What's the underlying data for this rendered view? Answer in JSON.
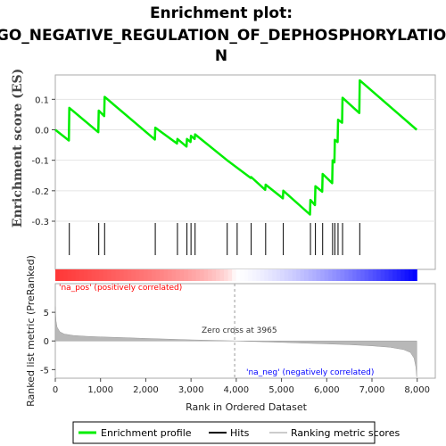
{
  "chart_data": {
    "type": "line",
    "title_line1": "Enrichment plot:",
    "title_line2": "GO_NEGATIVE_REGULATION_OF_DEPHOSPHORYLATIO",
    "title_line3": "N",
    "es_panel": {
      "ylabel": "Enrichment score (ES)",
      "ylim": [
        -0.3,
        0.18
      ],
      "yticks": [
        0.1,
        0.0,
        -0.1,
        -0.2,
        -0.3
      ],
      "ytick_labels": [
        "0.1",
        "0.0",
        "-0.1",
        "-0.2",
        "-0.3"
      ],
      "line_color": "#00ee00",
      "points": [
        {
          "x": 0,
          "y": 0.0
        },
        {
          "x": 300,
          "y": -0.035
        },
        {
          "x": 310,
          "y": 0.072
        },
        {
          "x": 950,
          "y": -0.008
        },
        {
          "x": 960,
          "y": 0.063
        },
        {
          "x": 1080,
          "y": 0.045
        },
        {
          "x": 1090,
          "y": 0.108
        },
        {
          "x": 2200,
          "y": -0.032
        },
        {
          "x": 2210,
          "y": 0.007
        },
        {
          "x": 2690,
          "y": -0.045
        },
        {
          "x": 2700,
          "y": -0.03
        },
        {
          "x": 2900,
          "y": -0.055
        },
        {
          "x": 2910,
          "y": -0.03
        },
        {
          "x": 2990,
          "y": -0.04
        },
        {
          "x": 3000,
          "y": -0.02
        },
        {
          "x": 3080,
          "y": -0.03
        },
        {
          "x": 3090,
          "y": -0.015
        },
        {
          "x": 3800,
          "y": -0.1
        },
        {
          "x": 4320,
          "y": -0.158
        },
        {
          "x": 4330,
          "y": -0.155
        },
        {
          "x": 4640,
          "y": -0.197
        },
        {
          "x": 4650,
          "y": -0.18
        },
        {
          "x": 5030,
          "y": -0.225
        },
        {
          "x": 5040,
          "y": -0.2
        },
        {
          "x": 5630,
          "y": -0.278
        },
        {
          "x": 5640,
          "y": -0.23
        },
        {
          "x": 5740,
          "y": -0.247
        },
        {
          "x": 5750,
          "y": -0.185
        },
        {
          "x": 5900,
          "y": -0.203
        },
        {
          "x": 5910,
          "y": -0.145
        },
        {
          "x": 6120,
          "y": -0.175
        },
        {
          "x": 6130,
          "y": -0.1
        },
        {
          "x": 6170,
          "y": -0.107
        },
        {
          "x": 6180,
          "y": -0.033
        },
        {
          "x": 6240,
          "y": -0.04
        },
        {
          "x": 6250,
          "y": 0.033
        },
        {
          "x": 6340,
          "y": 0.023
        },
        {
          "x": 6350,
          "y": 0.105
        },
        {
          "x": 6720,
          "y": 0.055
        },
        {
          "x": 6730,
          "y": 0.162
        },
        {
          "x": 7990,
          "y": 0.0
        }
      ]
    },
    "hits": [
      310,
      960,
      1090,
      2210,
      2700,
      2910,
      3000,
      3090,
      3800,
      4020,
      4330,
      4650,
      5040,
      5640,
      5750,
      5910,
      6130,
      6180,
      6250,
      6350,
      6730
    ],
    "rank_panel": {
      "ylabel": "Ranked list metric (PreRanked)",
      "ylim": [
        -6.5,
        10
      ],
      "yticks": [
        5,
        0,
        -5
      ],
      "ytick_labels": [
        "5",
        "0",
        "-5"
      ],
      "fill_color": "#b8b8b8",
      "metric_curve": [
        {
          "x": 0,
          "y": 6.0
        },
        {
          "x": 15,
          "y": 3.5
        },
        {
          "x": 40,
          "y": 2.4
        },
        {
          "x": 100,
          "y": 1.6
        },
        {
          "x": 200,
          "y": 1.2
        },
        {
          "x": 400,
          "y": 0.95
        },
        {
          "x": 700,
          "y": 0.8
        },
        {
          "x": 1000,
          "y": 0.7
        },
        {
          "x": 1500,
          "y": 0.58
        },
        {
          "x": 2000,
          "y": 0.45
        },
        {
          "x": 2500,
          "y": 0.32
        },
        {
          "x": 3000,
          "y": 0.2
        },
        {
          "x": 3500,
          "y": 0.1
        },
        {
          "x": 3965,
          "y": 0.0
        },
        {
          "x": 4500,
          "y": -0.12
        },
        {
          "x": 5000,
          "y": -0.25
        },
        {
          "x": 5500,
          "y": -0.38
        },
        {
          "x": 6000,
          "y": -0.5
        },
        {
          "x": 6500,
          "y": -0.65
        },
        {
          "x": 7000,
          "y": -0.85
        },
        {
          "x": 7400,
          "y": -1.1
        },
        {
          "x": 7700,
          "y": -1.5
        },
        {
          "x": 7850,
          "y": -2.0
        },
        {
          "x": 7930,
          "y": -3.0
        },
        {
          "x": 7970,
          "y": -4.5
        },
        {
          "x": 7990,
          "y": -6.3
        }
      ],
      "zero_cross_label": "Zero cross at 3965",
      "zero_cross_x": 3965,
      "pos_label": "'na_pos' (positively correlated)",
      "neg_label": "'na_neg' (negatively correlated)",
      "pos_color": "#ff0000",
      "neg_color": "#0000ff"
    },
    "xlabel": "Rank in Ordered Dataset",
    "xlim": [
      0,
      8400
    ],
    "xticks": [
      0,
      1000,
      2000,
      3000,
      4000,
      5000,
      6000,
      7000,
      8000
    ],
    "xtick_labels": [
      "0",
      "1,000",
      "2,000",
      "3,000",
      "4,000",
      "5,000",
      "6,000",
      "7,000",
      "8,000"
    ],
    "n_genes": 7990,
    "legend": [
      {
        "label": "Enrichment profile",
        "color": "#00ee00"
      },
      {
        "label": "Hits",
        "color": "#000000"
      },
      {
        "label": "Ranking metric scores",
        "color": "#cccccc"
      }
    ]
  }
}
